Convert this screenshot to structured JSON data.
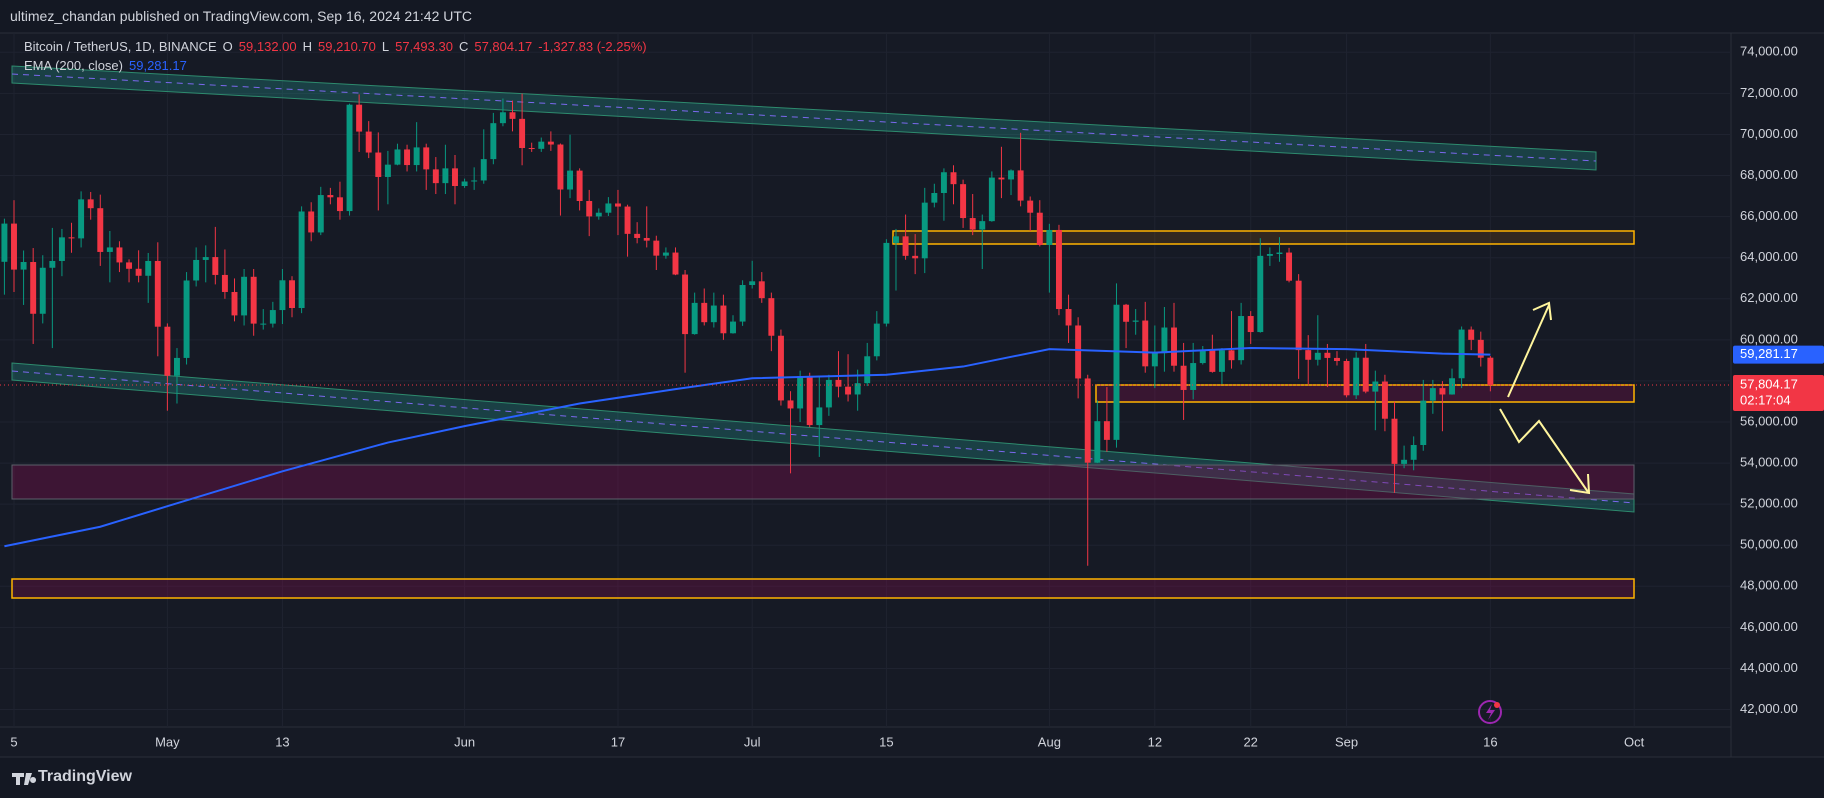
{
  "header": {
    "publisher": "ultimez_chandan published on TradingView.com, Sep 16, 2024 21:42 UTC"
  },
  "chart_data": {
    "type": "candlestick",
    "legend": {
      "symbol": "Bitcoin / TetherUS, 1D, BINANCE",
      "ohlc": [
        {
          "key": "O",
          "value": "59,132.00"
        },
        {
          "key": "H",
          "value": "59,210.70"
        },
        {
          "key": "L",
          "value": "57,493.30"
        },
        {
          "key": "C",
          "value": "57,804.17"
        }
      ],
      "change": "-1,327.83 (-2.25%)"
    },
    "up_color": "#089981",
    "down_color": "#f23645",
    "open": [
      63800,
      65660,
      63420,
      63790,
      61270,
      63510,
      63840,
      64990,
      64940,
      66840,
      66410,
      64280,
      64500,
      63770,
      63460,
      63120,
      63840,
      60640,
      58250,
      59120,
      62890,
      63890,
      64030,
      63160,
      62330,
      61190,
      63070,
      60790,
      60790,
      61450,
      62900,
      61550,
      66250,
      65230,
      67050,
      66940,
      66270,
      71450,
      70140,
      69120,
      67930,
      68530,
      69270,
      68510,
      69370,
      68300,
      67630,
      68350,
      67490,
      67710,
      67760,
      68800,
      70550,
      71080,
      70760,
      69340,
      69300,
      69650,
      69510,
      67320,
      68240,
      66760,
      66010,
      66190,
      66640,
      66490,
      65160,
      64960,
      64830,
      64100,
      64250,
      63180,
      60280,
      61800,
      60860,
      61670,
      60320,
      60890,
      62670,
      62850,
      62030,
      60200,
      57050,
      56660,
      58230,
      55850,
      56710,
      58050,
      57720,
      57340,
      57890,
      59200,
      60790,
      64720,
      65040,
      64090,
      63970,
      66680,
      67150,
      68160,
      67580,
      65930,
      65370,
      65780,
      67900,
      67810,
      68250,
      66780,
      66190,
      64620,
      65350,
      61500,
      60700,
      58120,
      54020,
      56040,
      55130,
      61710,
      60880,
      60940,
      58710,
      59350,
      60600,
      58740,
      57560,
      58870,
      59490,
      58440,
      59490,
      59010,
      61160,
      60380,
      64090,
      64180,
      64250,
      62880,
      59500,
      59030,
      59370,
      59120,
      58970,
      57300,
      59130,
      57480,
      57970,
      56160,
      53960,
      54160,
      54880,
      57040,
      57650,
      57340,
      58130,
      60500,
      60000,
      59132
    ],
    "high": [
      65900,
      66800,
      64350,
      64470,
      64120,
      65450,
      65400,
      65700,
      67230,
      67200,
      67070,
      65300,
      64800,
      63920,
      64360,
      64230,
      64750,
      60800,
      59600,
      63300,
      64500,
      64600,
      65500,
      64400,
      62990,
      63450,
      63450,
      61500,
      61850,
      63450,
      63100,
      66500,
      66700,
      67450,
      67400,
      67700,
      71500,
      71950,
      70650,
      70100,
      69200,
      69550,
      69500,
      70600,
      69550,
      68900,
      69500,
      69000,
      67850,
      68400,
      70250,
      71050,
      71750,
      71650,
      71990,
      69600,
      69850,
      70150,
      69560,
      69990,
      68350,
      67300,
      66400,
      66950,
      67300,
      66580,
      65730,
      66500,
      65070,
      64500,
      64500,
      63400,
      62300,
      62500,
      62300,
      62200,
      61200,
      62900,
      63850,
      63300,
      62300,
      60500,
      57500,
      58500,
      58400,
      58250,
      58300,
      59450,
      59300,
      58550,
      59850,
      61400,
      64900,
      65400,
      66100,
      65150,
      67400,
      67600,
      68350,
      68500,
      67800,
      67100,
      66100,
      68200,
      69400,
      68300,
      70080,
      66980,
      66800,
      65650,
      65600,
      62200,
      61100,
      58300,
      57050,
      57700,
      62750,
      61750,
      61500,
      61850,
      60700,
      61600,
      61800,
      59850,
      59850,
      59700,
      60250,
      59600,
      61400,
      61800,
      61400,
      64950,
      64500,
      65000,
      64480,
      63200,
      60230,
      61200,
      59800,
      59450,
      59080,
      59400,
      59800,
      58500,
      58300,
      56980,
      54850,
      55300,
      58050,
      58050,
      57990,
      58600,
      60650,
      60650,
      60400,
      59210.7
    ],
    "low": [
      62200,
      62330,
      61700,
      59800,
      60800,
      59600,
      63100,
      64240,
      64500,
      65850,
      63600,
      62800,
      63300,
      62800,
      62800,
      61800,
      59200,
      56550,
      56900,
      58800,
      62600,
      62800,
      62700,
      62000,
      60900,
      60700,
      60200,
      60500,
      60600,
      60770,
      61100,
      61300,
      64800,
      65100,
      66600,
      65850,
      66050,
      69150,
      68850,
      66300,
      66600,
      68500,
      68200,
      68200,
      67300,
      67100,
      67100,
      66600,
      67400,
      67300,
      67600,
      68550,
      70400,
      70150,
      68500,
      69150,
      69150,
      69200,
      66050,
      66900,
      66300,
      65050,
      65850,
      66030,
      65100,
      64050,
      64700,
      64500,
      63400,
      63950,
      63150,
      58400,
      60250,
      60700,
      60600,
      60000,
      60300,
      60680,
      62500,
      61800,
      59450,
      56800,
      53500,
      56000,
      55750,
      54300,
      56300,
      57200,
      57000,
      56550,
      57750,
      59000,
      60650,
      62400,
      63900,
      63200,
      63250,
      66450,
      65800,
      66600,
      65450,
      65100,
      63450,
      65750,
      66900,
      67050,
      66500,
      65300,
      64550,
      62300,
      61200,
      59850,
      57150,
      49000,
      54000,
      54550,
      54750,
      59600,
      60250,
      58400,
      57650,
      58450,
      58450,
      56100,
      57100,
      58800,
      58400,
      57850,
      58600,
      58800,
      59800,
      60350,
      63600,
      63800,
      62800,
      58100,
      57850,
      58750,
      57700,
      58750,
      57200,
      57120,
      57400,
      55600,
      55550,
      52550,
      53750,
      53650,
      54600,
      56400,
      55550,
      57330,
      57650,
      59500,
      58700,
      57493.3
    ],
    "close": [
      65660,
      63420,
      63790,
      61270,
      63510,
      63840,
      64990,
      64940,
      66840,
      66410,
      64280,
      64500,
      63770,
      63460,
      63120,
      63840,
      60640,
      58250,
      59120,
      62890,
      63890,
      64030,
      63160,
      62330,
      61190,
      63070,
      60790,
      60790,
      61450,
      62900,
      61550,
      66250,
      65230,
      67050,
      66940,
      66270,
      71450,
      70140,
      69120,
      67930,
      68530,
      69270,
      68510,
      69370,
      68300,
      67630,
      68350,
      67490,
      67710,
      67760,
      68800,
      70550,
      71080,
      70760,
      69340,
      69300,
      69650,
      69510,
      67320,
      68240,
      66760,
      66010,
      66190,
      66640,
      66490,
      65160,
      64960,
      64830,
      64100,
      64250,
      63180,
      60280,
      61800,
      60860,
      61670,
      60320,
      60890,
      62670,
      62850,
      62030,
      60200,
      57050,
      56660,
      58230,
      55850,
      56710,
      58050,
      57720,
      57340,
      57890,
      59200,
      60790,
      64720,
      65040,
      64090,
      63970,
      66680,
      67150,
      68160,
      67580,
      65930,
      65370,
      65780,
      67900,
      67810,
      68250,
      66780,
      66190,
      64620,
      65350,
      61500,
      60700,
      58120,
      54020,
      56040,
      55130,
      61710,
      60880,
      60940,
      58710,
      59350,
      60600,
      58740,
      57560,
      58870,
      59490,
      58440,
      59490,
      59010,
      61160,
      60380,
      64090,
      64180,
      64250,
      62880,
      59500,
      59030,
      59370,
      59120,
      58970,
      57300,
      59130,
      57480,
      57970,
      56160,
      53960,
      54160,
      54880,
      57040,
      57650,
      57340,
      58130,
      60500,
      60000,
      59130,
      57804.17
    ],
    "last_price_label": "57,804.17",
    "countdown": "02:17:04",
    "indicator": {
      "name": "EMA (200, close)",
      "value_label": "59,281.17",
      "color": "#2962ff",
      "x": [
        0,
        10,
        17,
        29,
        40,
        48,
        60,
        70,
        78,
        92,
        100,
        109,
        120,
        130,
        140,
        150,
        155
      ],
      "values": [
        49950,
        50900,
        51900,
        53600,
        55000,
        55800,
        56900,
        57600,
        58130,
        58300,
        58700,
        59550,
        59380,
        59600,
        59550,
        59330,
        59281.17
      ]
    },
    "xlim": [
      -0.46,
      180.1
    ],
    "ylim": [
      41150,
      74940
    ],
    "xticks": [
      {
        "value": 1,
        "label": "5"
      },
      {
        "value": 17,
        "label": "May"
      },
      {
        "value": 29,
        "label": "13"
      },
      {
        "value": 48,
        "label": "Jun"
      },
      {
        "value": 64,
        "label": "17"
      },
      {
        "value": 78,
        "label": "Jul"
      },
      {
        "value": 92,
        "label": "15"
      },
      {
        "value": 109,
        "label": "Aug"
      },
      {
        "value": 120,
        "label": "12"
      },
      {
        "value": 130,
        "label": "22"
      },
      {
        "value": 140,
        "label": "Sep"
      },
      {
        "value": 155,
        "label": "16"
      },
      {
        "value": 170,
        "label": "Oct"
      }
    ],
    "yticks": [
      {
        "value": 42000,
        "label": "42,000.00"
      },
      {
        "value": 44000,
        "label": "44,000.00"
      },
      {
        "value": 46000,
        "label": "46,000.00"
      },
      {
        "value": 48000,
        "label": "48,000.00"
      },
      {
        "value": 50000,
        "label": "50,000.00"
      },
      {
        "value": 52000,
        "label": "52,000.00"
      },
      {
        "value": 54000,
        "label": "54,000.00"
      },
      {
        "value": 56000,
        "label": "56,000.00"
      },
      {
        "value": 58000,
        "label": "58,000.00"
      },
      {
        "value": 60000,
        "label": "60,000.00"
      },
      {
        "value": 62000,
        "label": "62,000.00"
      },
      {
        "value": 64000,
        "label": "64,000.00"
      },
      {
        "value": 66000,
        "label": "66,000.00"
      },
      {
        "value": 68000,
        "label": "68,000.00"
      },
      {
        "value": 70000,
        "label": "70,000.00"
      },
      {
        "value": 72000,
        "label": "72,000.00"
      },
      {
        "value": 74000,
        "label": "74,000.00"
      }
    ],
    "grid": true
  },
  "footer": {
    "brand": "TradingView"
  }
}
